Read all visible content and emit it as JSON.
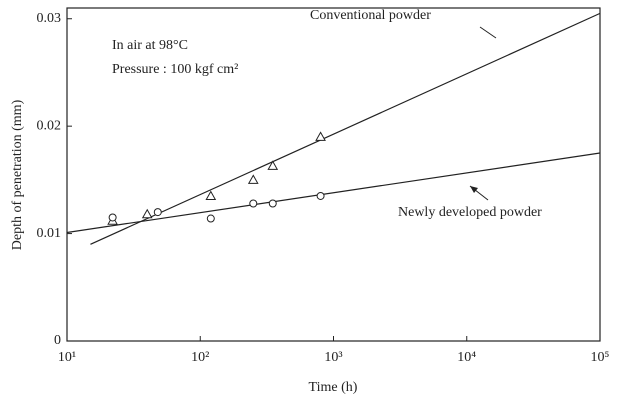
{
  "chart_data": {
    "type": "scatter",
    "xlabel": "Time (h)",
    "ylabel": "Depth of penetration (mm)",
    "xscale": "log",
    "xlim": [
      10,
      100000
    ],
    "ylim": [
      0,
      0.031
    ],
    "xticks": [
      {
        "value": 10,
        "label": "10¹"
      },
      {
        "value": 100,
        "label": "10²"
      },
      {
        "value": 1000,
        "label": "10³"
      },
      {
        "value": 10000,
        "label": "10⁴"
      },
      {
        "value": 100000,
        "label": "10⁵"
      }
    ],
    "yticks": [
      0,
      0.01,
      0.02,
      0.03
    ],
    "grid": false,
    "color": "#222222",
    "annotations": [
      "In air at 98°C",
      "Pressure : 100 kgf cm²"
    ],
    "series": [
      {
        "name": "Conventional powder",
        "marker": "triangle",
        "x": [
          22,
          40,
          120,
          250,
          350,
          800
        ],
        "values": [
          0.0112,
          0.0118,
          0.0135,
          0.015,
          0.0163,
          0.019
        ],
        "fit_x": [
          15,
          100000
        ],
        "fit_values": [
          0.009,
          0.0305
        ]
      },
      {
        "name": "Newly developed powder",
        "marker": "circle",
        "x": [
          22,
          48,
          120,
          250,
          350,
          800
        ],
        "values": [
          0.0115,
          0.012,
          0.0114,
          0.0128,
          0.0128,
          0.0135
        ],
        "fit_x": [
          10,
          100000
        ],
        "fit_values": [
          0.0101,
          0.0175
        ]
      }
    ]
  }
}
